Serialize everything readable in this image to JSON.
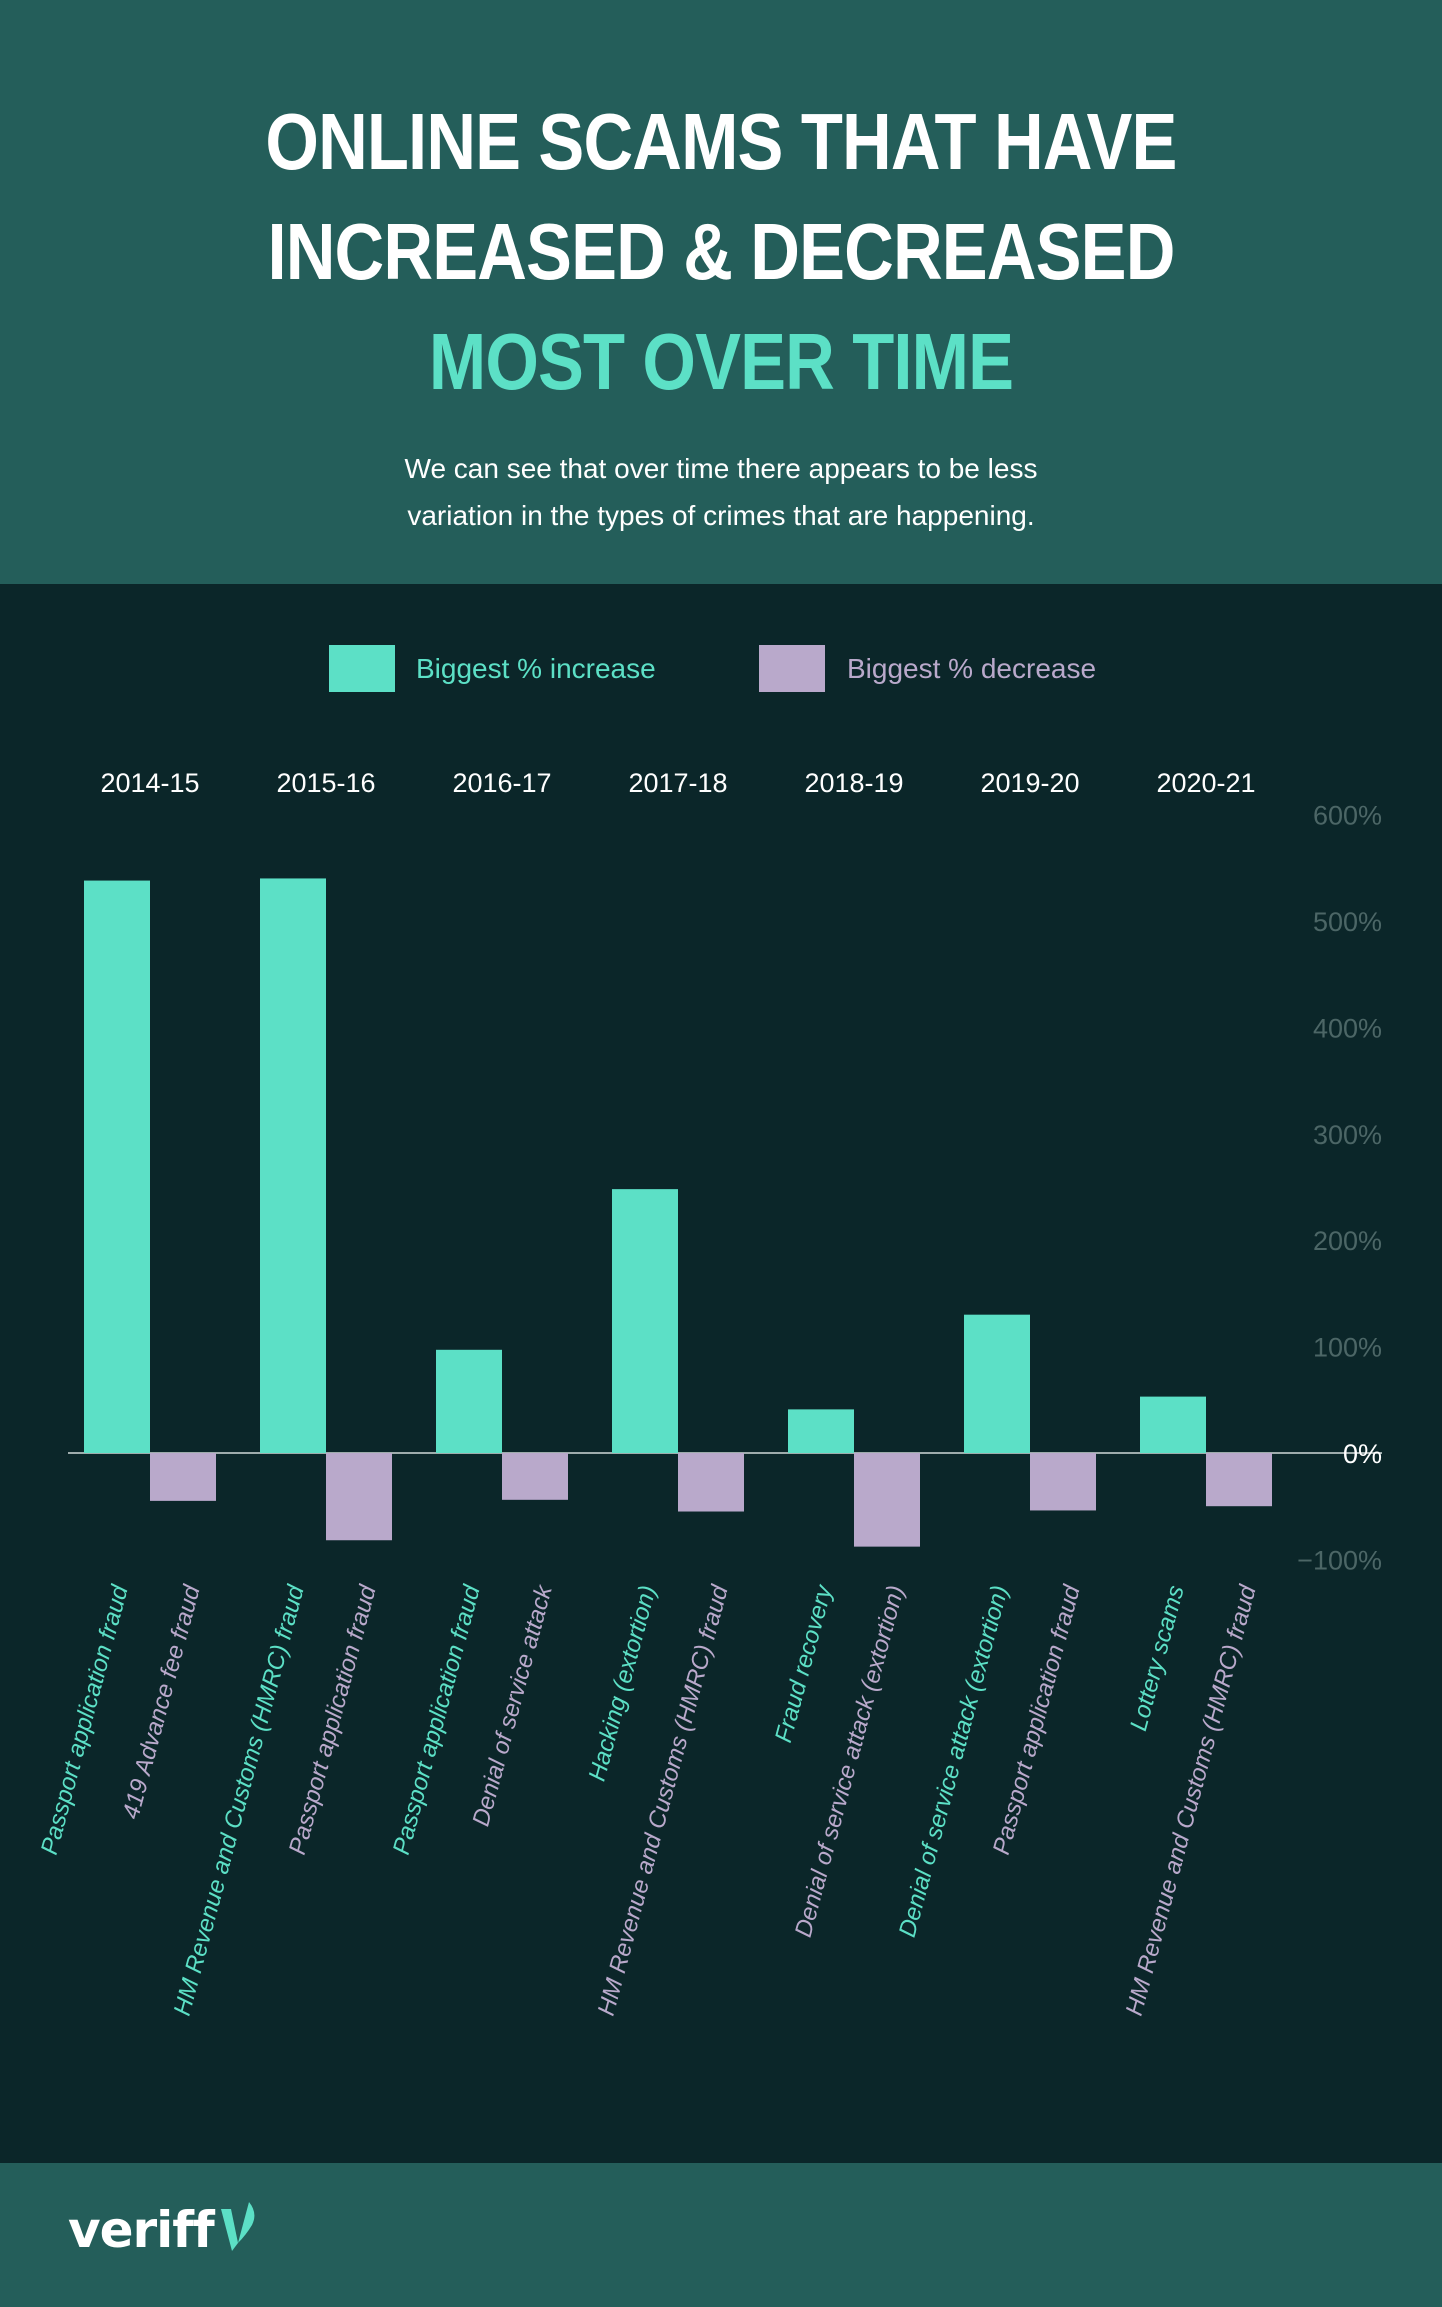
{
  "header": {
    "title_line1": "ONLINE SCAMS THAT HAVE",
    "title_line2": "INCREASED & DECREASED",
    "title_line3": "MOST OVER TIME",
    "subtitle_line1": "We can see that over time there appears to be less",
    "subtitle_line2": "variation in the types of crimes that are happening."
  },
  "colors": {
    "header_bg": "#245e5a",
    "chart_bg": "#0b2629",
    "increase": "#5ce0c6",
    "decrease": "#b9a9cb",
    "axis_tick": "#4c6666"
  },
  "chart_data": {
    "type": "bar",
    "title": "ONLINE SCAMS THAT HAVE INCREASED & DECREASED MOST OVER TIME",
    "categories": [
      "2014-15",
      "2015-16",
      "2016-17",
      "2017-18",
      "2018-19",
      "2019-20",
      "2020-21"
    ],
    "series": [
      {
        "name": "Biggest % increase",
        "values": [
          538,
          540,
          97,
          248,
          41,
          130,
          53
        ],
        "labels": [
          "Passport application fraud",
          "HM Revenue and Customs (HMRC) fraud",
          "Passport application fraud",
          "Hacking (extortion)",
          "Fraud recovery",
          "Denial of service attack (extortion)",
          "Lottery scams"
        ]
      },
      {
        "name": "Biggest % decrease",
        "values": [
          -45,
          -82,
          -44,
          -55,
          -88,
          -54,
          -50
        ],
        "labels": [
          "419 Advance fee fraud",
          "Passport application fraud",
          "Denial of service attack",
          "HM Revenue and Customs (HMRC) fraud",
          "Denial of service attack (extortion)",
          "Passport application fraud",
          "HM Revenue and Customs (HMRC) fraud"
        ]
      }
    ],
    "yticks": [
      600,
      500,
      400,
      300,
      200,
      100,
      0,
      -100
    ],
    "ytick_labels": [
      "600%",
      "500%",
      "400%",
      "300%",
      "200%",
      "100%",
      "0%",
      "−100%"
    ],
    "ylim": [
      -100,
      600
    ],
    "xlabel": "",
    "ylabel": "",
    "legend_position": "top-center"
  },
  "footer": {
    "logo_text": "veriff",
    "logo_icon": "veriff-mark-icon"
  }
}
